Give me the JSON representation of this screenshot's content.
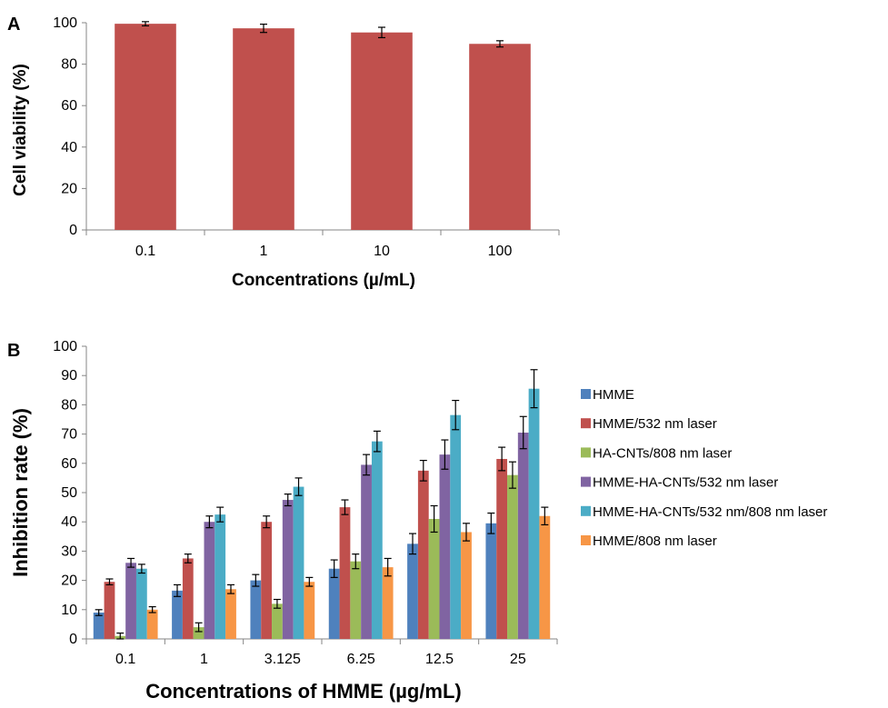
{
  "chart_data": [
    {
      "panel_label": "A",
      "type": "bar",
      "categories": [
        "0.1",
        "1",
        "10",
        "100"
      ],
      "values": [
        99.5,
        97.3,
        95.3,
        89.8
      ],
      "errors": [
        1.0,
        2.0,
        2.5,
        1.5
      ],
      "color": "#c0504d",
      "xlabel": "Concentrations (µ/mL)",
      "ylabel": "Cell viability (%)",
      "ylim": [
        0,
        100
      ],
      "yticks": [
        "0",
        "20",
        "40",
        "60",
        "80",
        "100"
      ],
      "grid": false,
      "legend": "none"
    },
    {
      "panel_label": "B",
      "type": "bar",
      "categories": [
        "0.1",
        "1",
        "3.125",
        "6.25",
        "12.5",
        "25"
      ],
      "series": [
        {
          "name": "HMME",
          "color": "#4f81bd",
          "values": [
            9,
            16.5,
            20,
            24,
            32.5,
            39.5
          ],
          "errors": [
            1,
            2,
            2,
            3,
            3.5,
            3.5
          ]
        },
        {
          "name": "HMME/532 nm laser",
          "color": "#c0504d",
          "values": [
            19.5,
            27.5,
            40,
            45,
            57.5,
            61.5
          ],
          "errors": [
            1,
            1.5,
            2,
            2.5,
            3.5,
            4
          ]
        },
        {
          "name": "HA-CNTs/808 nm laser",
          "color": "#9bbb59",
          "values": [
            1,
            4,
            12,
            26.5,
            41,
            56
          ],
          "errors": [
            1,
            1.5,
            1.5,
            2.5,
            4.5,
            4.5
          ]
        },
        {
          "name": "HMME-HA-CNTs/532 nm laser",
          "color": "#8064a2",
          "values": [
            26,
            40,
            47.5,
            59.5,
            63,
            70.5
          ],
          "errors": [
            1.5,
            2,
            2,
            3.5,
            5,
            5.5
          ]
        },
        {
          "name": "HMME-HA-CNTs/532 nm/808 nm laser",
          "color": "#4bacc6",
          "values": [
            24,
            42.5,
            52,
            67.5,
            76.5,
            85.5
          ],
          "errors": [
            1.5,
            2.5,
            3,
            3.5,
            5,
            6.5
          ]
        },
        {
          "name": "HMME/808 nm laser",
          "color": "#f79646",
          "values": [
            10,
            17,
            19.5,
            24.5,
            36.5,
            42
          ],
          "errors": [
            1,
            1.5,
            1.5,
            3,
            3,
            3
          ]
        }
      ],
      "xlabel": "Concentrations of HMME (µg/mL)",
      "ylabel": "Inhibition rate (%)",
      "ylim": [
        0,
        100
      ],
      "yticks": [
        "0",
        "10",
        "20",
        "30",
        "40",
        "50",
        "60",
        "70",
        "80",
        "90",
        "100"
      ],
      "grid": false,
      "legend": "right"
    }
  ]
}
